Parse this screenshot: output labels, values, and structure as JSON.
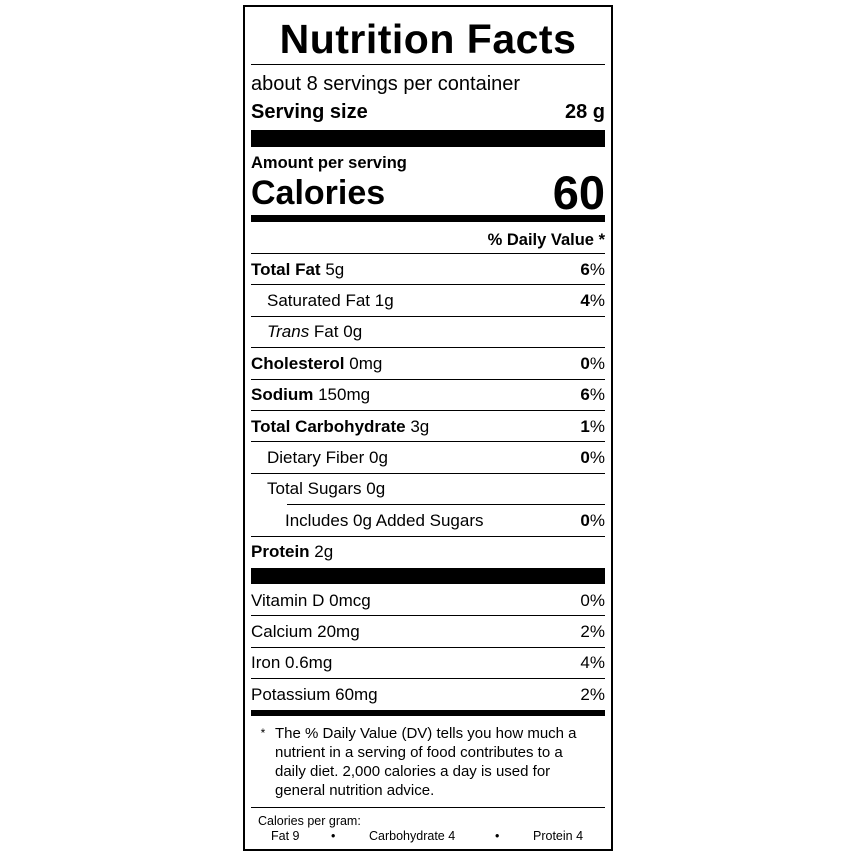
{
  "title": "Nutrition Facts",
  "servings": "about 8 servings per container",
  "serving_size": {
    "label": "Serving size",
    "value": "28 g"
  },
  "amount_per_serving": "Amount per serving",
  "calories": {
    "label": "Calories",
    "value": "60"
  },
  "dv_header": "% Daily Value *",
  "nutrients": [
    {
      "name": "Total Fat",
      "amount": "5g",
      "dv": "6",
      "bold": true
    },
    {
      "name": "Saturated Fat",
      "amount": "1g",
      "dv": "4",
      "indent": 1
    },
    {
      "name": "Trans",
      "suffix": " Fat",
      "amount": "0g",
      "dv": "",
      "indent": 1,
      "italic": true
    },
    {
      "name": "Cholesterol",
      "amount": "0mg",
      "dv": "0",
      "bold": true
    },
    {
      "name": "Sodium",
      "amount": "150mg",
      "dv": "6",
      "bold": true
    },
    {
      "name": "Total Carbohydrate",
      "amount": "3g",
      "dv": "1",
      "bold": true
    },
    {
      "name": "Dietary Fiber",
      "amount": "0g",
      "dv": "0",
      "indent": 1
    },
    {
      "name": "Total Sugars",
      "amount": "0g",
      "dv": "",
      "indent": 1
    },
    {
      "name": "Includes 0g Added Sugars",
      "amount": "",
      "dv": "0",
      "indent": 2
    },
    {
      "name": "Protein",
      "amount": "2g",
      "dv": "",
      "bold": true
    }
  ],
  "vitamins": [
    {
      "name": "Vitamin D",
      "amount": "0mcg",
      "dv": "0%"
    },
    {
      "name": "Calcium",
      "amount": "20mg",
      "dv": "2%"
    },
    {
      "name": "Iron",
      "amount": "0.6mg",
      "dv": "4%"
    },
    {
      "name": "Potassium",
      "amount": "60mg",
      "dv": "2%"
    }
  ],
  "footnote": {
    "star": "*",
    "text": "The % Daily Value (DV) tells you how much a nutrient in a serving of food contributes to a daily diet. 2,000 calories a day is used for general nutrition advice."
  },
  "calories_per_gram": {
    "label": "Calories per gram:",
    "fat": "Fat 9",
    "carb": "Carbohydrate 4",
    "protein": "Protein 4",
    "bullet": "•"
  }
}
